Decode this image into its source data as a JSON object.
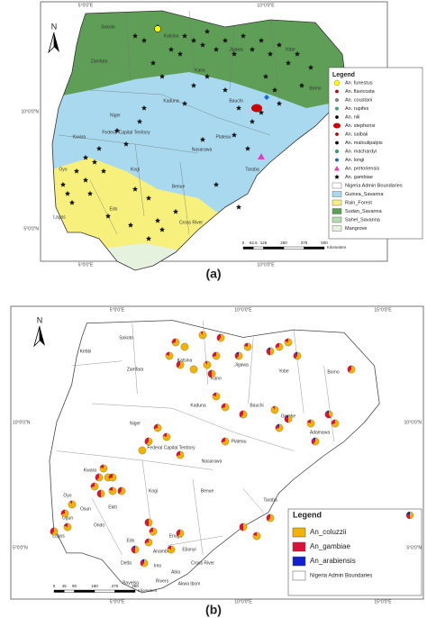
{
  "panel_a": {
    "label": "(a)",
    "north": "N",
    "lon_labels": [
      "5°0'0\"E",
      "10°0'0\"E"
    ],
    "lat_labels": [
      "10°0'0\"N",
      "5°0'0\"N"
    ],
    "legend": {
      "title": "Legend",
      "items": [
        "An. funestus",
        "An. flavicosta",
        "An. coustani",
        "An. rupifes",
        "An. nili",
        "An. stephensi",
        "An. salbaii",
        "An. maloulipalpis",
        "An. machardyi",
        "An. longi",
        "An. pretoriensis",
        "An. gambiae",
        "Nigeria Admin Boundaries",
        "Guinea_Savanna",
        "Rain_Forest",
        "Sudan_Savanna",
        "Sahel_Savanna",
        "Mangrove"
      ]
    },
    "scale": {
      "ticks": [
        "0",
        "62.5",
        "125",
        "250",
        "375",
        "500"
      ],
      "unit": "Kilometers"
    },
    "states": [
      "Sokoto",
      "Zamfara",
      "Katsina",
      "Kano",
      "Jigawa",
      "Yobe",
      "Borno",
      "Kaduna",
      "Bauchi",
      "Niger",
      "Federal Capital Territory",
      "Plateau",
      "Nasarawa",
      "Kwara",
      "Oyo",
      "Kogi",
      "Benue",
      "Taraba",
      "Edo",
      "Lagos",
      "Cross River"
    ]
  },
  "panel_b": {
    "label": "(b)",
    "north": "N",
    "lon_labels": [
      "5°0'0\"E",
      "10°0'0\"E",
      "15°0'0\"E"
    ],
    "lat_labels": [
      "10°0'0\"N",
      "5°0'0\"N"
    ],
    "legend": {
      "title": "Legend",
      "items": [
        "An_coluzzii",
        "An_gambiae",
        "An_arabiensis",
        "Nigeria Admin Boundaries"
      ]
    },
    "scale": {
      "ticks": [
        "0",
        "45",
        "90",
        "180",
        "270",
        "360"
      ],
      "unit": "Kilometers"
    },
    "states": [
      "Sokoto",
      "Kebbi",
      "Zamfara",
      "Katsina",
      "Kano",
      "Jigawa",
      "Yobe",
      "Borno",
      "Kaduna",
      "Bauchi",
      "Gombe",
      "Adamawa",
      "Niger",
      "Federal Capital Territory",
      "Plateau",
      "Kwara",
      "Nasarawa",
      "Oyo",
      "Osun",
      "Ekiti",
      "Kogi",
      "Benue",
      "Taraba",
      "Ogun",
      "Ondo",
      "Lagos",
      "Edo",
      "Enugu",
      "Anambra",
      "Ebonyi",
      "Delta",
      "Imo",
      "Cross River",
      "Bayelsa",
      "Rivers",
      "Akwa Ibom",
      "Abia"
    ]
  }
}
